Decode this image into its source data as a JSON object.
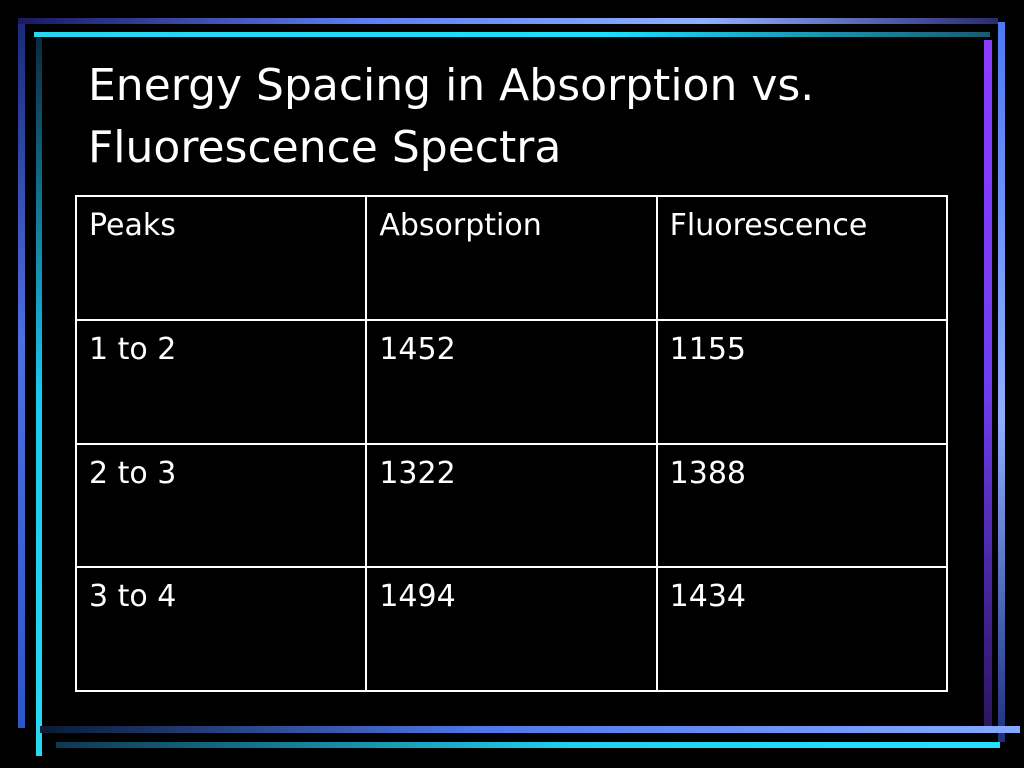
{
  "slide": {
    "title": "Energy Spacing in Absorption vs.\nFluorescence Spectra"
  },
  "table": {
    "headers": [
      "Peaks",
      "Absorption",
      "Fluorescence"
    ],
    "rows": [
      [
        "1 to 2",
        "1452",
        "1155"
      ],
      [
        "2 to 3",
        "1322",
        "1388"
      ],
      [
        "3 to 4",
        "1494",
        "1434"
      ]
    ]
  },
  "colors": {
    "background": "#000000",
    "text": "#ffffff",
    "accent_blue": "#5c7ef2",
    "accent_cyan": "#19e0ff",
    "accent_purple": "#8a3cff"
  }
}
